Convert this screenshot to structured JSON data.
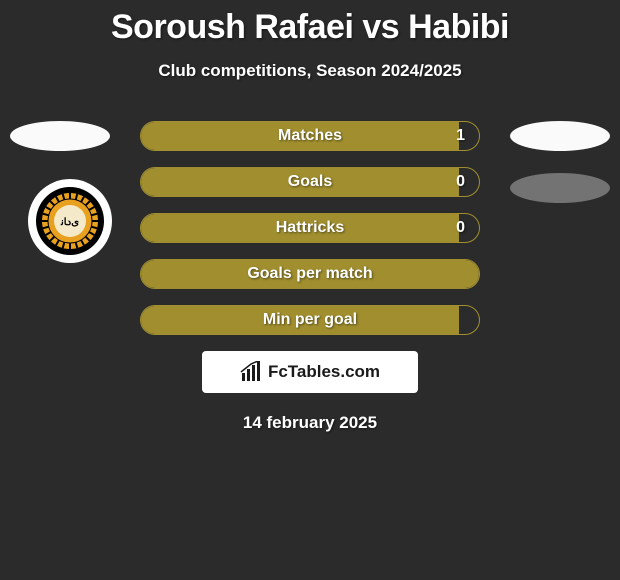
{
  "title": "Soroush Rafaei vs Habibi",
  "subtitle": "Club competitions, Season 2024/2025",
  "date": "14 february 2025",
  "footer_brand": "FcTables.com",
  "colors": {
    "background": "#2b2b2b",
    "bar_fill": "#a18f2f",
    "bar_border": "#a18f2f",
    "flag_light": "#fafafa",
    "flag_gray": "#737373",
    "text": "#ffffff"
  },
  "stats": [
    {
      "label": "Matches",
      "value_right": "1",
      "fill_pct": 94,
      "show_value": true
    },
    {
      "label": "Goals",
      "value_right": "0",
      "fill_pct": 94,
      "show_value": true
    },
    {
      "label": "Hattricks",
      "value_right": "0",
      "fill_pct": 94,
      "show_value": true
    },
    {
      "label": "Goals per match",
      "value_right": "",
      "fill_pct": 100,
      "show_value": false
    },
    {
      "label": "Min per goal",
      "value_right": "",
      "fill_pct": 94,
      "show_value": false
    }
  ]
}
